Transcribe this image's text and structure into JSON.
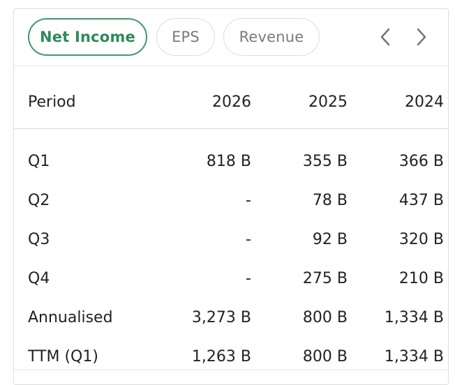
{
  "tabs": [
    {
      "label": "Net Income",
      "active": true
    },
    {
      "label": "EPS",
      "active": false
    },
    {
      "label": "Revenue",
      "active": false
    }
  ],
  "nav": {
    "prev_icon": "chevron-left-icon",
    "next_icon": "chevron-right-icon"
  },
  "colors": {
    "accent": "#3f9a6a",
    "text": "#222222",
    "muted": "#7a7a7a",
    "border": "#dcdcdc"
  },
  "table": {
    "columns": [
      "Period",
      "2026",
      "2025",
      "2024"
    ],
    "rows": [
      [
        "Q1",
        "818 B",
        "355 B",
        "366 B"
      ],
      [
        "Q2",
        "-",
        "78 B",
        "437 B"
      ],
      [
        "Q3",
        "-",
        "92 B",
        "320 B"
      ],
      [
        "Q4",
        "-",
        "275 B",
        "210 B"
      ],
      [
        "Annualised",
        "3,273 B",
        "800 B",
        "1,334 B"
      ],
      [
        "TTM (Q1)",
        "1,263 B",
        "800 B",
        "1,334 B"
      ]
    ]
  }
}
